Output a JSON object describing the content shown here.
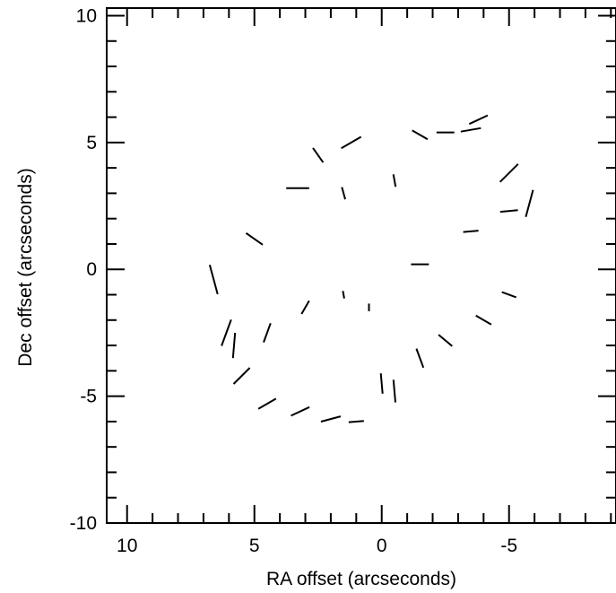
{
  "chart_data": {
    "type": "scatter",
    "subtype": "polarization vector map",
    "title": "",
    "xlabel": "RA offset (arcseconds)",
    "ylabel": "Dec offset (arcseconds)",
    "xlim": [
      10.8,
      -9.2
    ],
    "ylim": [
      -10,
      10.3
    ],
    "x_axis_reversed": true,
    "xticks": [
      10,
      5,
      0,
      -5
    ],
    "xtick_labels": [
      "10",
      "5",
      "0",
      "-5"
    ],
    "yticks": [
      -10,
      -5,
      0,
      5,
      10
    ],
    "ytick_labels": [
      "-10",
      "-5",
      "0",
      "5",
      "10"
    ],
    "minor_tick_step": 1,
    "grid": false,
    "legend": "none",
    "line_color": "#000000",
    "region": {
      "description": "vectors cover a peanut-shaped region",
      "approx_x_range": [
        6.8,
        -6.0
      ],
      "approx_y_range": [
        -6.3,
        6.2
      ]
    },
    "series": [
      {
        "values": [
          {
            "x": -1.5,
            "y": 5.3,
            "len": 0.7,
            "pa": 60
          },
          {
            "x": -2.5,
            "y": 5.4,
            "len": 0.7,
            "pa": 90
          },
          {
            "x": -3.5,
            "y": 5.5,
            "len": 0.8,
            "pa": 100
          },
          {
            "x": -3.8,
            "y": 5.9,
            "len": 0.8,
            "pa": 115
          },
          {
            "x": -5.0,
            "y": 3.8,
            "len": 1.0,
            "pa": 135
          },
          {
            "x": -5.8,
            "y": 2.6,
            "len": 1.1,
            "pa": 165
          },
          {
            "x": -5.0,
            "y": 2.3,
            "len": 0.7,
            "pa": 95
          },
          {
            "x": -3.5,
            "y": 1.5,
            "len": 0.6,
            "pa": 95
          },
          {
            "x": -1.5,
            "y": 0.2,
            "len": 0.7,
            "pa": 90
          },
          {
            "x": -0.5,
            "y": 3.5,
            "len": 0.5,
            "pa": 10
          },
          {
            "x": 1.5,
            "y": 3.0,
            "len": 0.5,
            "pa": 15
          },
          {
            "x": 2.5,
            "y": 4.5,
            "len": 0.7,
            "pa": 35
          },
          {
            "x": 1.2,
            "y": 5.0,
            "len": 0.9,
            "pa": 120
          },
          {
            "x": 3.3,
            "y": 3.2,
            "len": 0.9,
            "pa": 90
          },
          {
            "x": 5.0,
            "y": 1.2,
            "len": 0.8,
            "pa": 55
          },
          {
            "x": 6.6,
            "y": -0.4,
            "len": 1.2,
            "pa": 15
          },
          {
            "x": 6.1,
            "y": -2.5,
            "len": 1.1,
            "pa": 160
          },
          {
            "x": 5.8,
            "y": -3.0,
            "len": 1.0,
            "pa": 175
          },
          {
            "x": 5.5,
            "y": -4.2,
            "len": 0.9,
            "pa": 135
          },
          {
            "x": 4.5,
            "y": -5.3,
            "len": 0.8,
            "pa": 120
          },
          {
            "x": 3.2,
            "y": -5.6,
            "len": 0.8,
            "pa": 115
          },
          {
            "x": 2.0,
            "y": -5.9,
            "len": 0.8,
            "pa": 105
          },
          {
            "x": 1.0,
            "y": -6.0,
            "len": 0.6,
            "pa": 95
          },
          {
            "x": 0.0,
            "y": -4.5,
            "len": 0.8,
            "pa": 5
          },
          {
            "x": -0.5,
            "y": -4.8,
            "len": 0.9,
            "pa": 5
          },
          {
            "x": -1.5,
            "y": -3.5,
            "len": 0.8,
            "pa": 20
          },
          {
            "x": -2.5,
            "y": -2.8,
            "len": 0.7,
            "pa": 50
          },
          {
            "x": -4.0,
            "y": -2.0,
            "len": 0.7,
            "pa": 60
          },
          {
            "x": -5.0,
            "y": -1.0,
            "len": 0.6,
            "pa": 70
          },
          {
            "x": 0.5,
            "y": -1.5,
            "len": 0.3,
            "pa": 0
          },
          {
            "x": 1.5,
            "y": -1.0,
            "len": 0.3,
            "pa": 10
          },
          {
            "x": 3.0,
            "y": -1.5,
            "len": 0.6,
            "pa": 150
          },
          {
            "x": 4.5,
            "y": -2.5,
            "len": 0.8,
            "pa": 160
          }
        ]
      }
    ]
  }
}
